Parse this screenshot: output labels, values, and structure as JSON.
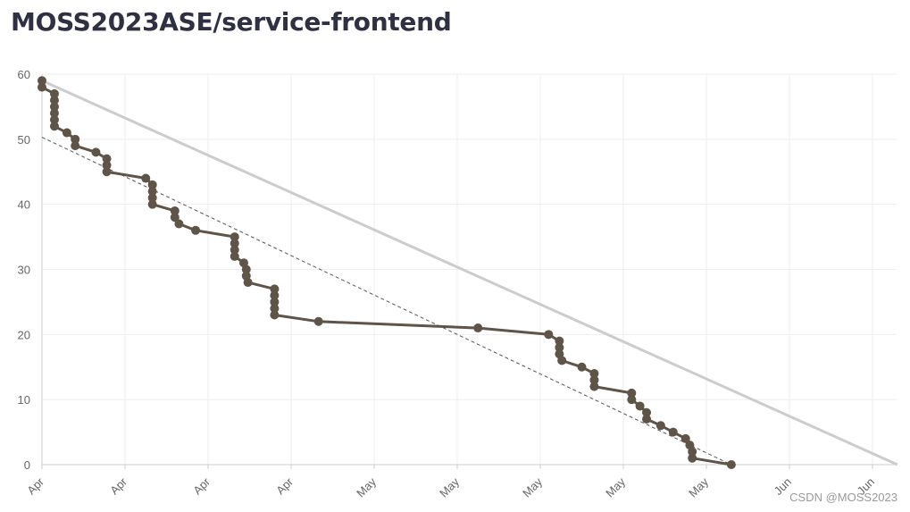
{
  "page": {
    "title": "MOSS2023ASE/service-frontend",
    "watermark": "CSDN @MOSS2023"
  },
  "colors": {
    "actual": "#5e5448",
    "ideal": "#cccccc",
    "trend": "#555555",
    "grid": "#eeeeee",
    "tick_text": "#666666"
  },
  "chart_data": {
    "type": "line",
    "title": "",
    "xlabel": "",
    "ylabel": "",
    "x_tick_labels": [
      "Apr",
      "Apr",
      "Apr",
      "Apr",
      "May",
      "May",
      "May",
      "May",
      "May",
      "Jun",
      "Jun"
    ],
    "xlim": [
      0,
      10.3
    ],
    "ylim": [
      0,
      60
    ],
    "y_ticks": [
      0,
      10,
      20,
      30,
      40,
      50,
      60
    ],
    "grid": true,
    "legend": "none",
    "series": [
      {
        "style": "actual",
        "points": [
          [
            0.0,
            59
          ],
          [
            0.0,
            58
          ],
          [
            0.15,
            57
          ],
          [
            0.15,
            56
          ],
          [
            0.15,
            55
          ],
          [
            0.15,
            54
          ],
          [
            0.15,
            53
          ],
          [
            0.15,
            52
          ],
          [
            0.3,
            51
          ],
          [
            0.4,
            50
          ],
          [
            0.4,
            49
          ],
          [
            0.65,
            48
          ],
          [
            0.78,
            47
          ],
          [
            0.78,
            46
          ],
          [
            0.78,
            45
          ],
          [
            1.25,
            44
          ],
          [
            1.33,
            43
          ],
          [
            1.33,
            42
          ],
          [
            1.33,
            41
          ],
          [
            1.33,
            40
          ],
          [
            1.6,
            39
          ],
          [
            1.6,
            38
          ],
          [
            1.65,
            37
          ],
          [
            1.85,
            36
          ],
          [
            2.32,
            35
          ],
          [
            2.32,
            34
          ],
          [
            2.32,
            33
          ],
          [
            2.32,
            32
          ],
          [
            2.43,
            31
          ],
          [
            2.46,
            30
          ],
          [
            2.46,
            29
          ],
          [
            2.48,
            28
          ],
          [
            2.8,
            27
          ],
          [
            2.8,
            26
          ],
          [
            2.8,
            25
          ],
          [
            2.8,
            24
          ],
          [
            2.8,
            23
          ],
          [
            3.33,
            22
          ],
          [
            5.25,
            21
          ],
          [
            6.1,
            20
          ],
          [
            6.23,
            19
          ],
          [
            6.23,
            18
          ],
          [
            6.23,
            17
          ],
          [
            6.26,
            16
          ],
          [
            6.5,
            15
          ],
          [
            6.65,
            14
          ],
          [
            6.65,
            13
          ],
          [
            6.65,
            12
          ],
          [
            7.1,
            11
          ],
          [
            7.1,
            10
          ],
          [
            7.2,
            9
          ],
          [
            7.28,
            8
          ],
          [
            7.28,
            7
          ],
          [
            7.45,
            6
          ],
          [
            7.6,
            5
          ],
          [
            7.75,
            4
          ],
          [
            7.8,
            3
          ],
          [
            7.83,
            2
          ],
          [
            7.83,
            1
          ],
          [
            8.3,
            0
          ]
        ]
      },
      {
        "style": "ideal",
        "points": [
          [
            0.0,
            59
          ],
          [
            10.3,
            0
          ]
        ]
      },
      {
        "style": "trend",
        "points": [
          [
            0.0,
            50.3
          ],
          [
            8.3,
            0
          ]
        ]
      }
    ]
  }
}
